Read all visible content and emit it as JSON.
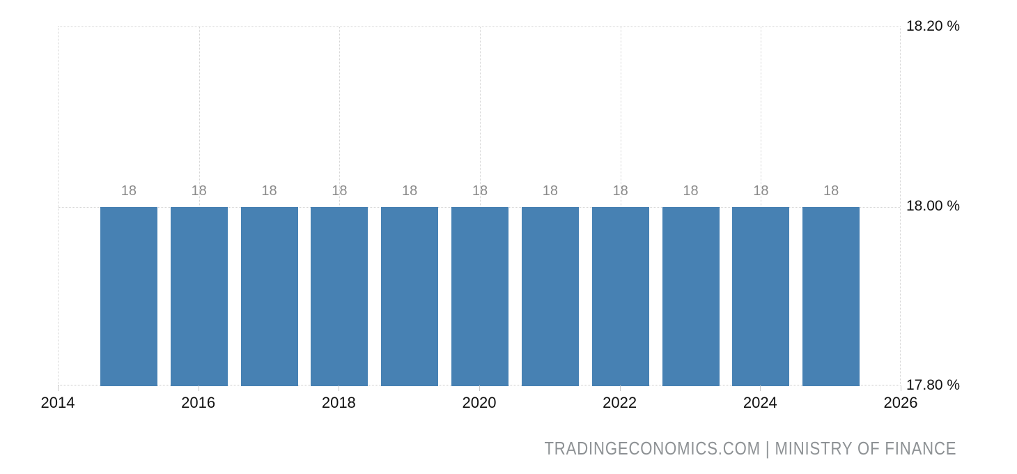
{
  "chart_data": {
    "type": "bar",
    "title": "",
    "xlabel": "",
    "ylabel": "",
    "x": [
      2015,
      2016,
      2017,
      2018,
      2019,
      2020,
      2021,
      2022,
      2023,
      2024,
      2025
    ],
    "values": [
      18,
      18,
      18,
      18,
      18,
      18,
      18,
      18,
      18,
      18,
      18
    ],
    "bar_labels": [
      "18",
      "18",
      "18",
      "18",
      "18",
      "18",
      "18",
      "18",
      "18",
      "18",
      "18"
    ],
    "xlim": [
      2014,
      2026
    ],
    "ylim": [
      17.8,
      18.2
    ],
    "x_ticks": [
      {
        "year": 2014,
        "label": "2014"
      },
      {
        "year": 2016,
        "label": "2016"
      },
      {
        "year": 2018,
        "label": "2018"
      },
      {
        "year": 2020,
        "label": "2020"
      },
      {
        "year": 2022,
        "label": "2022"
      },
      {
        "year": 2024,
        "label": "2024"
      },
      {
        "year": 2026,
        "label": "2026"
      }
    ],
    "y_ticks": [
      {
        "value": 18.2,
        "label": "18.20 %"
      },
      {
        "value": 18.0,
        "label": "18.00 %"
      },
      {
        "value": 17.8,
        "label": "17.80 %"
      }
    ],
    "grid": "dotted",
    "legend_position": "none",
    "attribution": "TRADINGECONOMICS.COM | MINISTRY OF FINANCE",
    "colors": {
      "bar": "#4781b3",
      "grid": "#d4d4d4",
      "bar_label": "#8a8a8a",
      "axis_text": "#111111",
      "attribution_text": "#8d9194",
      "background": "#ffffff"
    }
  }
}
